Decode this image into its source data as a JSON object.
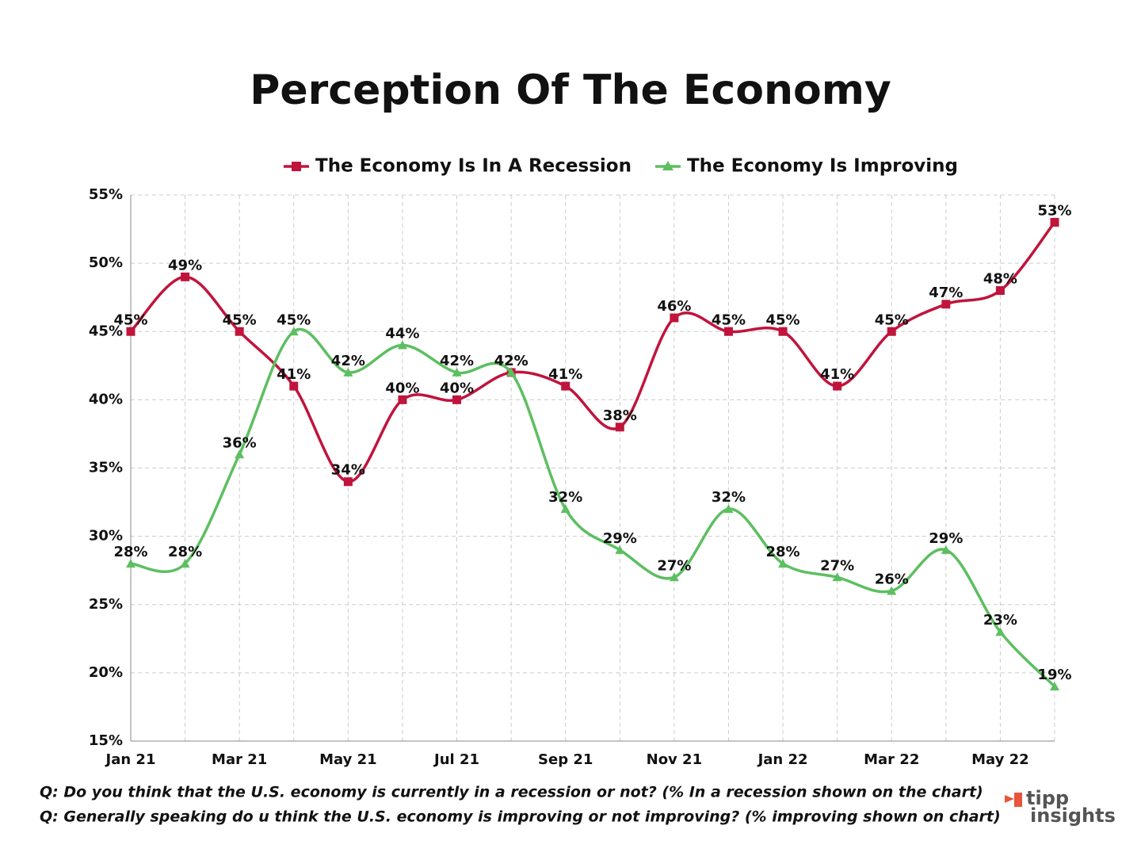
{
  "chart_data": {
    "type": "line",
    "title": "Perception Of The Economy",
    "categories": [
      "Jan 21",
      null,
      "Mar 21",
      null,
      "May 21",
      null,
      "Jul 21",
      null,
      "Sep 21",
      null,
      "Nov 21",
      null,
      "Jan 22",
      null,
      "Mar 22",
      null,
      "May 22",
      null
    ],
    "series": [
      {
        "name": "The Economy Is In A Recession",
        "color": "#c0143c",
        "marker": "square",
        "values": [
          45,
          49,
          45,
          41,
          34,
          40,
          40,
          42,
          41,
          38,
          46,
          45,
          45,
          41,
          45,
          47,
          48,
          53
        ],
        "value_labels": [
          "45%",
          "49%",
          "45%",
          "41%",
          "34%",
          "40%",
          "40%",
          "42%",
          "41%",
          "38%",
          "46%",
          "45%",
          "45%",
          "41%",
          "45%",
          "47%",
          "48%",
          "53%"
        ]
      },
      {
        "name": "The Economy Is Improving",
        "color": "#5cbf60",
        "marker": "triangle",
        "values": [
          28,
          28,
          36,
          45,
          42,
          44,
          42,
          42,
          32,
          29,
          27,
          32,
          28,
          27,
          26,
          29,
          23,
          19
        ],
        "value_labels": [
          "28%",
          "28%",
          "36%",
          "45%",
          "42%",
          "44%",
          "42%",
          "42%",
          "32%",
          "29%",
          "27%",
          "32%",
          "28%",
          "27%",
          "26%",
          "29%",
          "23%",
          "19%"
        ]
      }
    ],
    "ylim": [
      15,
      55
    ],
    "yticks": [
      {
        "value": 15,
        "label": "15%"
      },
      {
        "value": 20,
        "label": "20%"
      },
      {
        "value": 25,
        "label": "25%"
      },
      {
        "value": 30,
        "label": "30%"
      },
      {
        "value": 35,
        "label": "35%"
      },
      {
        "value": 40,
        "label": "40%"
      },
      {
        "value": 45,
        "label": "45%"
      },
      {
        "value": 50,
        "label": "50%"
      },
      {
        "value": 55,
        "label": "55%"
      }
    ],
    "grid": true,
    "legend": "top"
  },
  "footnotes": [
    "Q: Do you think that the U.S. economy is currently in a recession or not? (% In a recession shown on the chart)",
    "Q: Generally speaking do u think the U.S. economy is improving or not improving? (% improving shown on chart)"
  ],
  "logo": {
    "line1": "tipp",
    "line2": "insights"
  }
}
